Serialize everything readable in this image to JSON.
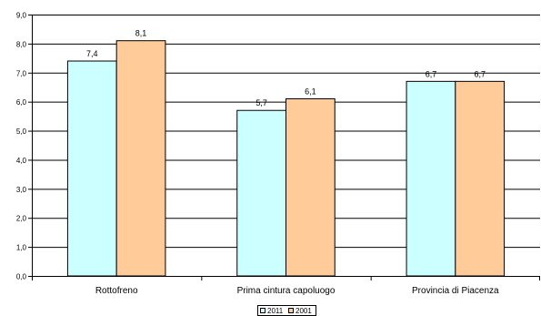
{
  "chart_data": {
    "type": "bar",
    "categories": [
      "Rottofreno",
      "Prima cintura capoluogo",
      "Provincia di Piacenza"
    ],
    "series": [
      {
        "name": "2011",
        "values": [
          7.4,
          5.7,
          6.7
        ],
        "labels": [
          "7,4",
          "5,7",
          "6,7"
        ],
        "color": "#ccffff"
      },
      {
        "name": "2001",
        "values": [
          8.1,
          6.1,
          6.7
        ],
        "labels": [
          "8,1",
          "6,1",
          "6,7"
        ],
        "color": "#ffcc99"
      }
    ],
    "ylim": [
      0,
      9
    ],
    "yticks": [
      0,
      1,
      2,
      3,
      4,
      5,
      6,
      7,
      8,
      9
    ],
    "ytick_labels": [
      "0,0",
      "1,0",
      "2,0",
      "3,0",
      "4,0",
      "5,0",
      "6,0",
      "7,0",
      "8,0",
      "9,0"
    ],
    "grid": true,
    "legend_position": "bottom"
  }
}
